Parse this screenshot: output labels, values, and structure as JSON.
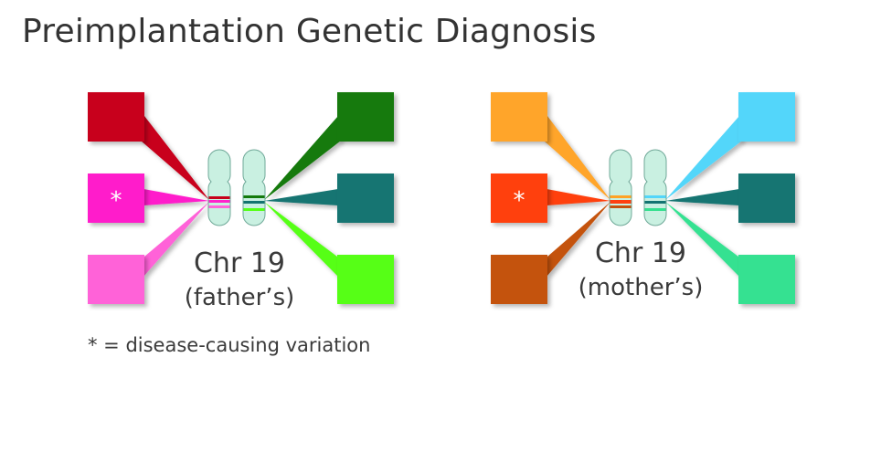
{
  "title": "Preimplantation Genetic Diagnosis",
  "footnote": "* = disease-causing variation",
  "panels": [
    {
      "id": "father",
      "chr_label": "Chr 19",
      "owner_label": "(father’s)",
      "left_chromosome_bands": [
        "#c8001a",
        "#ff22cc",
        "#ff66d9"
      ],
      "right_chromosome_bands": [
        "#137a0c",
        "#137470",
        "#55ff18"
      ],
      "boxes_left": [
        {
          "color": "#c8001a",
          "marker": ""
        },
        {
          "color": "#ff1ecb",
          "marker": "*"
        },
        {
          "color": "#ff62d8",
          "marker": ""
        }
      ],
      "boxes_right": [
        {
          "color": "#137a0c",
          "marker": ""
        },
        {
          "color": "#137472",
          "marker": ""
        },
        {
          "color": "#56ff17",
          "marker": ""
        }
      ]
    },
    {
      "id": "mother",
      "chr_label": "Chr 19",
      "owner_label": "(mother’s)",
      "left_chromosome_bands": [
        "#ffa326",
        "#ff3f10",
        "#c4520f"
      ],
      "right_chromosome_bands": [
        "#52d6fa",
        "#137472",
        "#35e08f"
      ],
      "boxes_left": [
        {
          "color": "#ffa52a",
          "marker": ""
        },
        {
          "color": "#ff4010",
          "marker": "*"
        },
        {
          "color": "#c45310",
          "marker": ""
        }
      ],
      "boxes_right": [
        {
          "color": "#52d6fa",
          "marker": ""
        },
        {
          "color": "#137472",
          "marker": ""
        },
        {
          "color": "#36e191",
          "marker": ""
        }
      ]
    }
  ],
  "chromosome_color": "#c9f0e1"
}
